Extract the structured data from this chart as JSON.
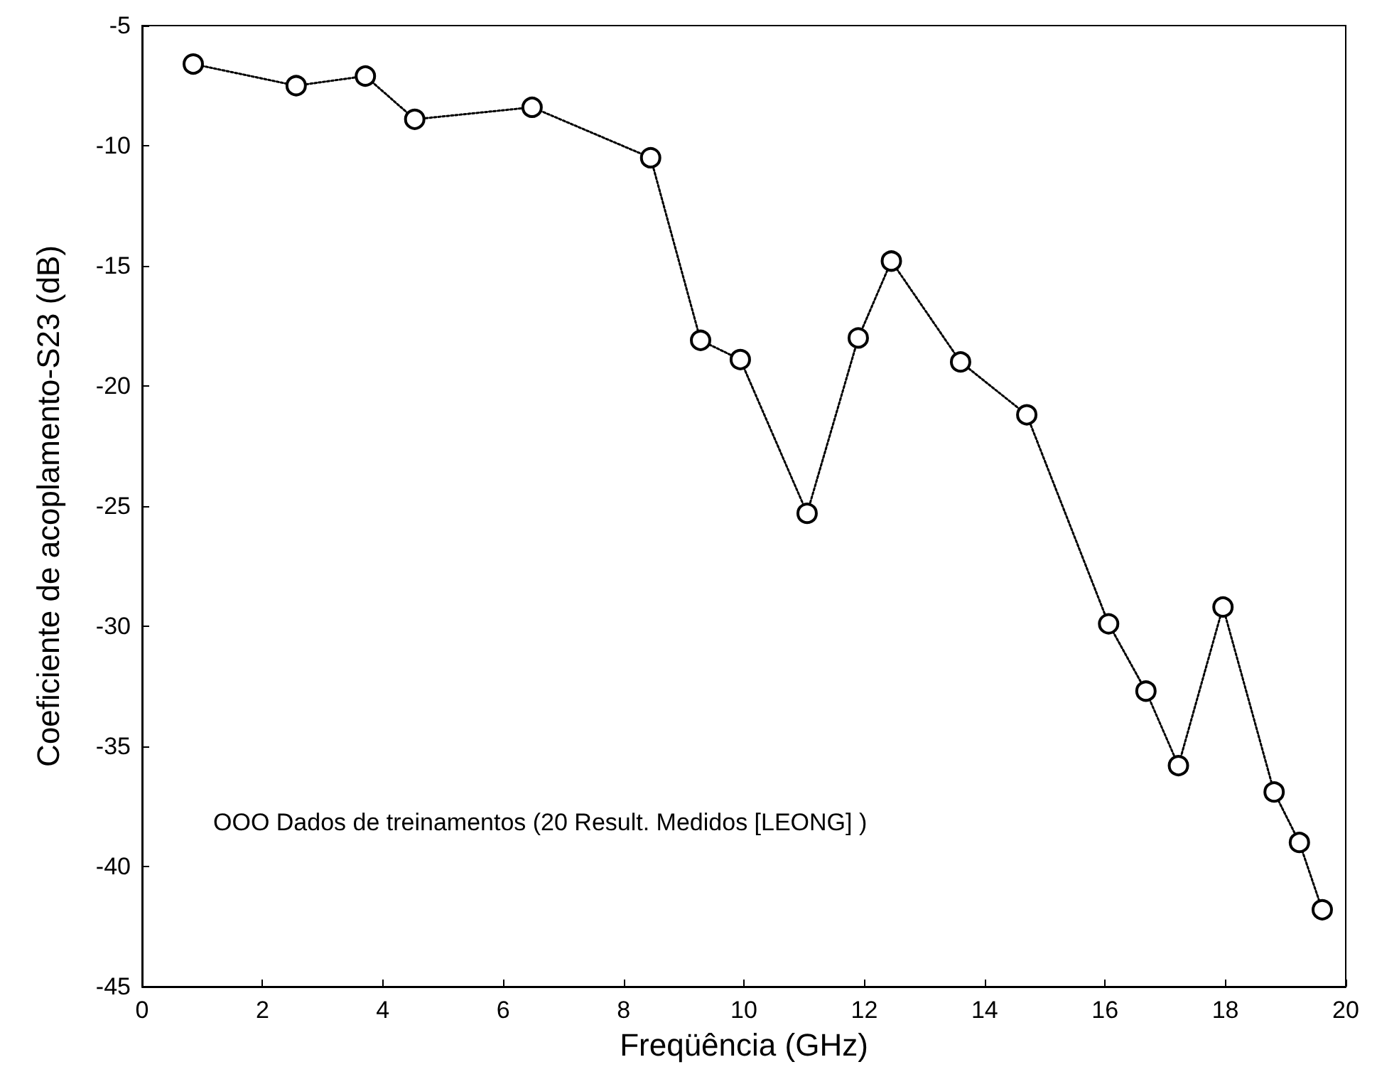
{
  "chart_data": {
    "type": "line",
    "xlabel": "Freqüência (GHz)",
    "ylabel": "Coeficiente de acoplamento-S23 (dB)",
    "annotations": [
      "OOO Dados de treinamentos (20 Result. Medidos [LEONG] )"
    ],
    "x": [
      0.85,
      2.56,
      3.71,
      4.53,
      6.48,
      8.45,
      9.28,
      9.94,
      11.05,
      11.9,
      12.45,
      13.6,
      14.7,
      16.06,
      16.68,
      17.22,
      17.96,
      18.81,
      19.23,
      19.61
    ],
    "series": [
      {
        "color": "#000000",
        "values": [
          -6.6,
          -7.5,
          -7.1,
          -8.9,
          -8.4,
          -10.5,
          -18.1,
          -18.9,
          -25.3,
          -18.0,
          -14.8,
          -19.0,
          -21.2,
          -29.9,
          -32.7,
          -35.8,
          -29.2,
          -36.9,
          -39.0,
          -41.8
        ]
      }
    ],
    "xlim": [
      0,
      20
    ],
    "xticks": [
      0,
      2,
      4,
      6,
      8,
      10,
      12,
      14,
      16,
      18,
      20
    ],
    "ylim": [
      -45,
      -5
    ],
    "yticks": [
      -45,
      -40,
      -35,
      -30,
      -25,
      -20,
      -15,
      -10,
      -5
    ],
    "grid": false,
    "marker": "circle",
    "line_style": "dotted"
  }
}
